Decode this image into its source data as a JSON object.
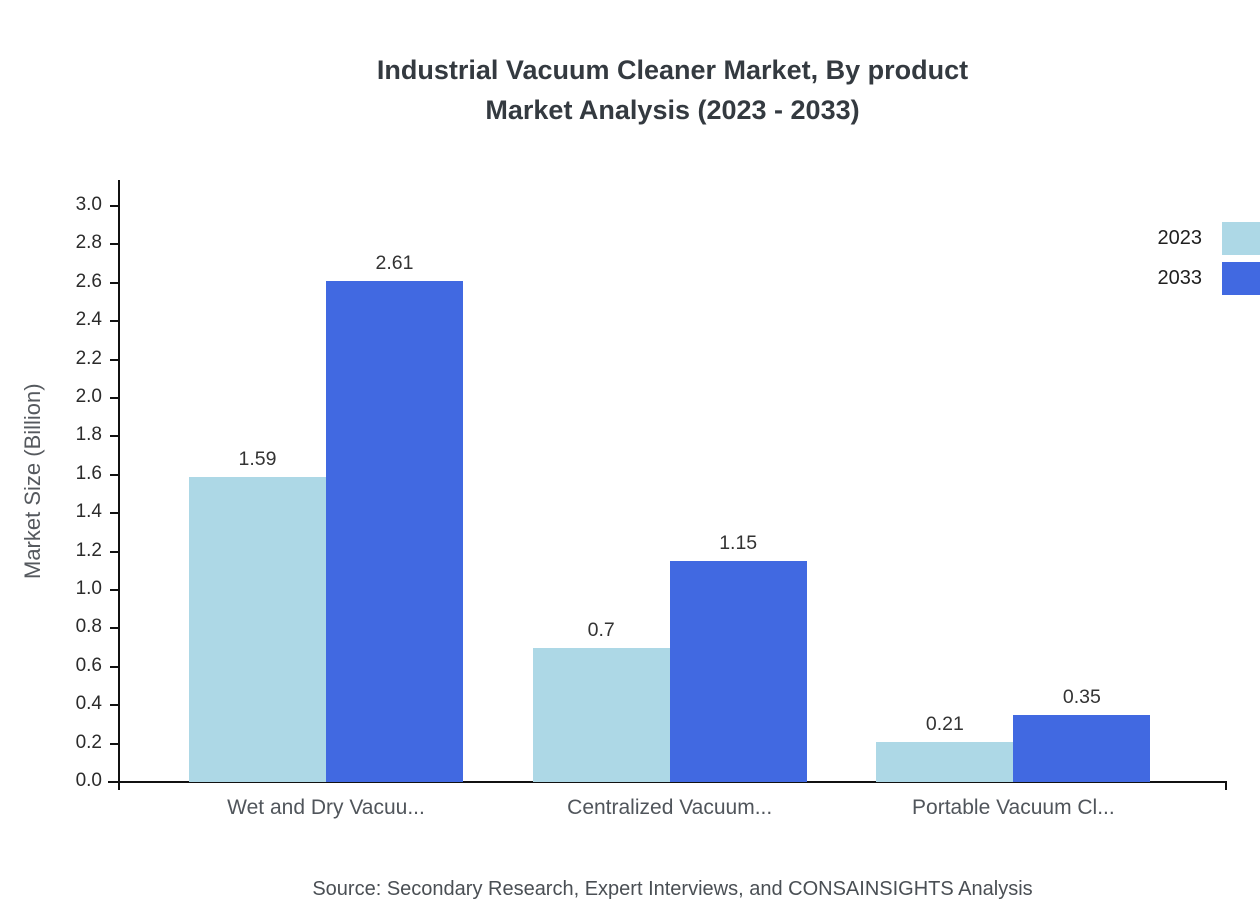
{
  "chart": {
    "title_line1": "Industrial Vacuum Cleaner Market, By product",
    "title_line2": "Market Analysis (2023 - 2033)",
    "ylabel": "Market Size (Billion)",
    "source": "Source: Secondary Research, Expert Interviews, and CONSAINSIGHTS Analysis"
  },
  "chart_data": {
    "type": "bar",
    "title": "Industrial Vacuum Cleaner Market, By product Market Analysis (2023 - 2033)",
    "categories": [
      "Wet and Dry Vacuu...",
      "Centralized Vacuum...",
      "Portable Vacuum Cl..."
    ],
    "series": [
      {
        "name": "2023",
        "color": "#add8e6",
        "values": [
          1.59,
          0.7,
          0.21
        ]
      },
      {
        "name": "2033",
        "color": "#4169e1",
        "values": [
          2.61,
          1.15,
          0.35
        ]
      }
    ],
    "xlabel": "",
    "ylabel": "Market Size (Billion)",
    "ylim": [
      0,
      3.0
    ],
    "ytick_step": 0.2,
    "yticks": [
      "0.0",
      "0.2",
      "0.4",
      "0.6",
      "0.8",
      "1.0",
      "1.2",
      "1.4",
      "1.6",
      "1.8",
      "2.0",
      "2.2",
      "2.4",
      "2.6",
      "2.8",
      "3.0"
    ],
    "value_labels": [
      "1.59",
      "2.61",
      "0.7",
      "1.15",
      "0.21",
      "0.35"
    ],
    "legend_position": "top-right",
    "grid": false,
    "axis_color": "#111111"
  }
}
